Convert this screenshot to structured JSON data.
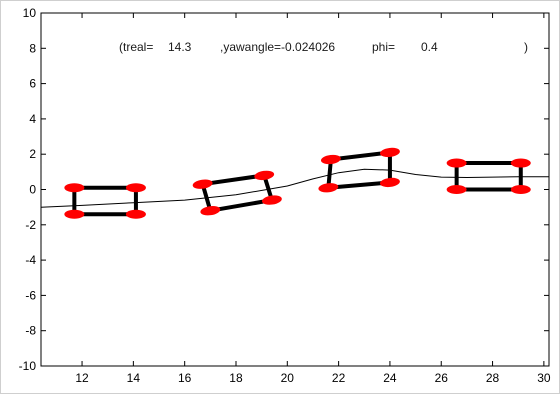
{
  "chart_data": {
    "type": "line",
    "title": {
      "open": "(treal=",
      "treal": "14.3",
      "yaw": ",yawangle=-0.024026",
      "phi_label": "phi=",
      "phi": "0.4",
      "close": ")"
    },
    "xlim": [
      10.4,
      30.2
    ],
    "ylim": [
      -10,
      10
    ],
    "xticks": [
      12,
      14,
      16,
      18,
      20,
      22,
      24,
      26,
      28,
      30
    ],
    "yticks": [
      -10,
      -8,
      -6,
      -4,
      -2,
      0,
      2,
      4,
      6,
      8,
      10
    ],
    "grid": false,
    "series": [
      {
        "x": [
          10.4,
          12,
          14,
          16,
          18,
          20,
          21,
          22,
          23,
          24,
          25,
          26,
          27,
          28,
          29,
          30.2
        ],
        "y": [
          -1.0,
          -0.9,
          -0.75,
          -0.6,
          -0.3,
          0.2,
          0.6,
          0.95,
          1.15,
          1.1,
          0.85,
          0.7,
          0.68,
          0.7,
          0.72,
          0.72
        ]
      }
    ],
    "vehicles": [
      {
        "corners": [
          [
            11.7,
            0.1
          ],
          [
            14.1,
            0.1
          ],
          [
            14.1,
            -1.4
          ],
          [
            11.7,
            -1.4
          ]
        ]
      },
      {
        "corners": [
          [
            16.7,
            0.3
          ],
          [
            19.1,
            0.8
          ],
          [
            19.4,
            -0.6
          ],
          [
            17.0,
            -1.2
          ]
        ]
      },
      {
        "corners": [
          [
            21.7,
            1.7
          ],
          [
            24.0,
            2.1
          ],
          [
            24.0,
            0.4
          ],
          [
            21.6,
            0.1
          ]
        ]
      },
      {
        "corners": [
          [
            26.6,
            1.5
          ],
          [
            29.1,
            1.5
          ],
          [
            29.1,
            0.0
          ],
          [
            26.6,
            0.0
          ]
        ]
      }
    ],
    "colors": {
      "vehicle_frame": "#000000",
      "wheel": "#ff0000",
      "path": "#000000",
      "axis": "#000000"
    }
  }
}
